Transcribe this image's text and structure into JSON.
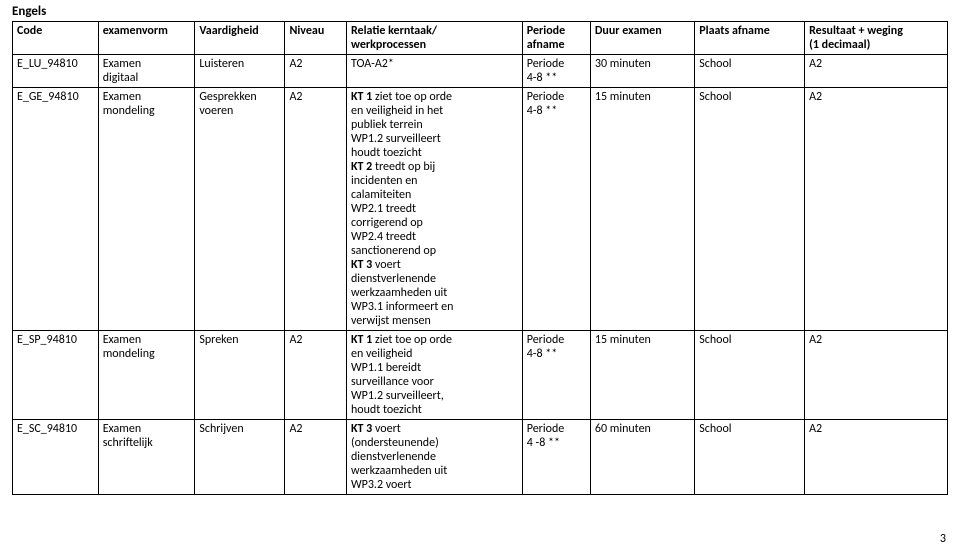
{
  "title": "Engels",
  "columns": [
    "Code",
    "examenvorm",
    "Vaardigheid",
    "Niveau",
    "Relatie kerntaak/\nwerkprocessen",
    "Periode\nafname",
    "Duur examen",
    "Plaats afname",
    "Resultaat + weging\n(1 decimaal)"
  ],
  "rows": [
    {
      "code": "E_LU_94810",
      "examenvorm": "Examen\ndigitaal",
      "vaardigheid": "Luisteren",
      "niveau": "A2",
      "relatie": "TOA-A2*",
      "periode": "Periode\n4-8 **",
      "duur": "30 minuten",
      "plaats": "School",
      "resultaat": "A2"
    },
    {
      "code": "E_GE_94810",
      "examenvorm": "Examen\nmondeling",
      "vaardigheid": "Gesprekken\nvoeren",
      "niveau": "A2",
      "relatie": "KT 1 ziet toe op orde\nen veiligheid in het\npubliek terrein\nWP1.2 surveilleert\nhoudt toezicht\nKT 2 treedt op bij\nincidenten en\ncalamiteiten\nWP2.1 treedt\ncorrigerend op\nWP2.4 treedt\nsanctionerend op\nKT 3 voert\ndienstverlenende\nwerkzaamheden uit\nWP3.1 informeert en\nverwijst  mensen",
      "periode": "Periode\n4-8 **",
      "duur": "15 minuten",
      "plaats": "School",
      "resultaat": "A2"
    },
    {
      "code": "E_SP_94810",
      "examenvorm": "Examen\nmondeling",
      "vaardigheid": "Spreken",
      "niveau": "A2",
      "relatie": "KT 1 ziet toe op orde\nen veiligheid\nWP1.1 bereidt\nsurveillance voor\nWP1.2 surveilleert,\nhoudt toezicht",
      "periode": "Periode\n4-8 **",
      "duur": "15 minuten",
      "plaats": "School",
      "resultaat": "A2"
    },
    {
      "code": "E_SC_94810",
      "examenvorm": "Examen\nschriftelijk",
      "vaardigheid": "Schrijven",
      "niveau": "A2",
      "relatie": "KT 3 voert\n(ondersteunende)\ndienstverlenende\nwerkzaamheden uit\nWP3.2 voert",
      "periode": "Periode\n 4 -8 **",
      "duur": "60 minuten",
      "plaats": "School",
      "resultaat": "A2"
    }
  ],
  "boldPhrases": [
    "KT 1",
    "KT 2",
    "KT 3"
  ],
  "page_number": "3",
  "colors": {
    "border": "#000000",
    "background": "#ffffff",
    "text": "#000000"
  },
  "font": {
    "family": "Calibri",
    "size_pt": 9,
    "header_weight": "bold"
  }
}
